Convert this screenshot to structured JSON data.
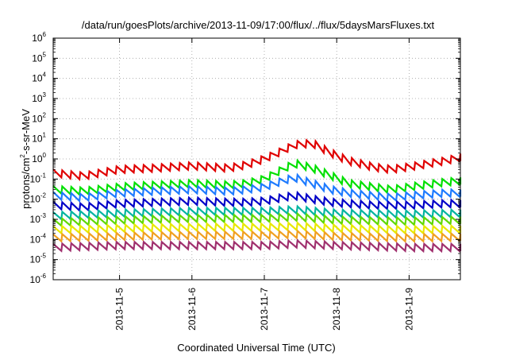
{
  "chart_data": {
    "type": "line",
    "title": "/data/run/goesPlots/archive/2013-11-09/17:00/flux/../flux/5daysMarsFluxes.txt",
    "xlabel": "Coordinated Universal Time (UTC)",
    "ylabel_parts": [
      "protons/cm",
      "2",
      "-s-sr-MeV"
    ],
    "yscale": "log",
    "ylim": [
      1e-06,
      1000000.0
    ],
    "xlim": [
      "2013-11-04 02:00",
      "2013-11-09 17:00"
    ],
    "grid": true,
    "legend": "none",
    "y_ticks": [
      {
        "base": "10",
        "exp": "-6"
      },
      {
        "base": "10",
        "exp": "-5"
      },
      {
        "base": "10",
        "exp": "-4"
      },
      {
        "base": "10",
        "exp": "-3"
      },
      {
        "base": "10",
        "exp": "-2"
      },
      {
        "base": "10",
        "exp": "-1"
      },
      {
        "base": "10",
        "exp": "0"
      },
      {
        "base": "10",
        "exp": "1"
      },
      {
        "base": "10",
        "exp": "2"
      },
      {
        "base": "10",
        "exp": "3"
      },
      {
        "base": "10",
        "exp": "4"
      },
      {
        "base": "10",
        "exp": "5"
      },
      {
        "base": "10",
        "exp": "6"
      }
    ],
    "x_ticks": [
      "2013-11-5",
      "2013-11-6",
      "2013-11-7",
      "2013-11-8",
      "2013-11-9"
    ],
    "sawtooth_period_hours": 3,
    "series": [
      {
        "color": "#e00000",
        "envelope": [
          [
            "2013-11-04 02:00",
            0.2
          ],
          [
            "2013-11-04 12:00",
            0.14
          ],
          [
            "2013-11-05 00:00",
            0.3
          ],
          [
            "2013-11-05 12:00",
            0.35
          ],
          [
            "2013-11-06 00:00",
            0.45
          ],
          [
            "2013-11-06 12:00",
            0.35
          ],
          [
            "2013-11-06 18:00",
            0.5
          ],
          [
            "2013-11-07 00:00",
            1.0
          ],
          [
            "2013-11-07 06:00",
            2.5
          ],
          [
            "2013-11-07 10:00",
            5.0
          ],
          [
            "2013-11-07 16:00",
            6.0
          ],
          [
            "2013-11-07 22:00",
            2.0
          ],
          [
            "2013-11-08 04:00",
            0.8
          ],
          [
            "2013-11-08 12:00",
            0.4
          ],
          [
            "2013-11-08 18:00",
            0.3
          ],
          [
            "2013-11-09 00:00",
            0.4
          ],
          [
            "2013-11-09 12:00",
            0.8
          ],
          [
            "2013-11-09 17:00",
            1.2
          ]
        ]
      },
      {
        "color": "#00e000",
        "envelope": [
          [
            "2013-11-04 02:00",
            0.03
          ],
          [
            "2013-11-04 12:00",
            0.025
          ],
          [
            "2013-11-05 00:00",
            0.04
          ],
          [
            "2013-11-05 12:00",
            0.05
          ],
          [
            "2013-11-06 00:00",
            0.06
          ],
          [
            "2013-11-06 12:00",
            0.05
          ],
          [
            "2013-11-06 18:00",
            0.06
          ],
          [
            "2013-11-07 00:00",
            0.1
          ],
          [
            "2013-11-07 06:00",
            0.3
          ],
          [
            "2013-11-07 10:00",
            0.6
          ],
          [
            "2013-11-07 16:00",
            0.35
          ],
          [
            "2013-11-07 22:00",
            0.15
          ],
          [
            "2013-11-08 04:00",
            0.06
          ],
          [
            "2013-11-08 12:00",
            0.04
          ],
          [
            "2013-11-08 18:00",
            0.03
          ],
          [
            "2013-11-09 00:00",
            0.04
          ],
          [
            "2013-11-09 12:00",
            0.07
          ],
          [
            "2013-11-09 17:00",
            0.08
          ]
        ]
      },
      {
        "color": "#1e7bff",
        "envelope": [
          [
            "2013-11-04 02:00",
            0.015
          ],
          [
            "2013-11-04 12:00",
            0.012
          ],
          [
            "2013-11-05 00:00",
            0.02
          ],
          [
            "2013-11-05 12:00",
            0.025
          ],
          [
            "2013-11-06 00:00",
            0.03
          ],
          [
            "2013-11-06 12:00",
            0.025
          ],
          [
            "2013-11-06 18:00",
            0.03
          ],
          [
            "2013-11-07 00:00",
            0.04
          ],
          [
            "2013-11-07 06:00",
            0.08
          ],
          [
            "2013-11-07 10:00",
            0.12
          ],
          [
            "2013-11-07 16:00",
            0.06
          ],
          [
            "2013-11-07 22:00",
            0.03
          ],
          [
            "2013-11-08 04:00",
            0.02
          ],
          [
            "2013-11-08 12:00",
            0.015
          ],
          [
            "2013-11-08 18:00",
            0.012
          ],
          [
            "2013-11-09 00:00",
            0.015
          ],
          [
            "2013-11-09 12:00",
            0.02
          ],
          [
            "2013-11-09 17:00",
            0.02
          ]
        ]
      },
      {
        "color": "#0000c8",
        "envelope": [
          [
            "2013-11-04 02:00",
            0.005
          ],
          [
            "2013-11-04 12:00",
            0.004
          ],
          [
            "2013-11-05 00:00",
            0.006
          ],
          [
            "2013-11-05 12:00",
            0.007
          ],
          [
            "2013-11-06 00:00",
            0.008
          ],
          [
            "2013-11-06 12:00",
            0.007
          ],
          [
            "2013-11-06 18:00",
            0.007
          ],
          [
            "2013-11-07 00:00",
            0.008
          ],
          [
            "2013-11-07 06:00",
            0.012
          ],
          [
            "2013-11-07 10:00",
            0.015
          ],
          [
            "2013-11-07 16:00",
            0.01
          ],
          [
            "2013-11-07 22:00",
            0.007
          ],
          [
            "2013-11-08 04:00",
            0.006
          ],
          [
            "2013-11-08 12:00",
            0.005
          ],
          [
            "2013-11-08 18:00",
            0.005
          ],
          [
            "2013-11-09 00:00",
            0.005
          ],
          [
            "2013-11-09 12:00",
            0.006
          ],
          [
            "2013-11-09 17:00",
            0.006
          ]
        ]
      },
      {
        "color": "#00b4a0",
        "envelope": [
          [
            "2013-11-04 02:00",
            0.0015
          ],
          [
            "2013-11-05 00:00",
            0.002
          ],
          [
            "2013-11-06 00:00",
            0.0025
          ],
          [
            "2013-11-07 00:00",
            0.0025
          ],
          [
            "2013-11-07 10:00",
            0.003
          ],
          [
            "2013-11-08 00:00",
            0.002
          ],
          [
            "2013-11-09 00:00",
            0.0018
          ],
          [
            "2013-11-09 17:00",
            0.002
          ]
        ]
      },
      {
        "color": "#60d800",
        "envelope": [
          [
            "2013-11-04 02:00",
            0.0007
          ],
          [
            "2013-11-05 00:00",
            0.0009
          ],
          [
            "2013-11-06 00:00",
            0.0011
          ],
          [
            "2013-11-07 00:00",
            0.0011
          ],
          [
            "2013-11-07 10:00",
            0.0013
          ],
          [
            "2013-11-08 00:00",
            0.0009
          ],
          [
            "2013-11-09 00:00",
            0.0008
          ],
          [
            "2013-11-09 17:00",
            0.0009
          ]
        ]
      },
      {
        "color": "#e8e800",
        "envelope": [
          [
            "2013-11-04 02:00",
            0.0003
          ],
          [
            "2013-11-05 00:00",
            0.00035
          ],
          [
            "2013-11-06 00:00",
            0.0004
          ],
          [
            "2013-11-07 00:00",
            0.0004
          ],
          [
            "2013-11-07 10:00",
            0.00045
          ],
          [
            "2013-11-08 00:00",
            0.00035
          ],
          [
            "2013-11-09 00:00",
            0.0003
          ],
          [
            "2013-11-09 17:00",
            0.00032
          ]
        ]
      },
      {
        "color": "#f0a020",
        "envelope": [
          [
            "2013-11-04 02:00",
            0.00012
          ],
          [
            "2013-11-05 00:00",
            0.00014
          ],
          [
            "2013-11-06 00:00",
            0.00016
          ],
          [
            "2013-11-07 00:00",
            0.00016
          ],
          [
            "2013-11-07 10:00",
            0.00018
          ],
          [
            "2013-11-08 00:00",
            0.00014
          ],
          [
            "2013-11-09 00:00",
            0.00012
          ],
          [
            "2013-11-09 17:00",
            0.00013
          ]
        ]
      },
      {
        "color": "#a0306e",
        "envelope": [
          [
            "2013-11-04 02:00",
            4e-05
          ],
          [
            "2013-11-05 00:00",
            5e-05
          ],
          [
            "2013-11-06 00:00",
            5e-05
          ],
          [
            "2013-11-07 00:00",
            5e-05
          ],
          [
            "2013-11-07 10:00",
            6e-05
          ],
          [
            "2013-11-08 00:00",
            5e-05
          ],
          [
            "2013-11-09 00:00",
            4e-05
          ],
          [
            "2013-11-09 17:00",
            4e-05
          ]
        ]
      }
    ]
  }
}
